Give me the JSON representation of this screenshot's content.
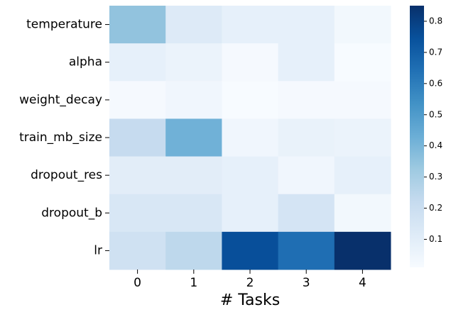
{
  "chart_data": {
    "type": "heatmap",
    "x_label": "# Tasks",
    "x_categories": [
      "0",
      "1",
      "2",
      "3",
      "4"
    ],
    "y_categories": [
      "temperature",
      "alpha",
      "weight_decay",
      "train_mb_size",
      "dropout_res",
      "dropout_b",
      "lr"
    ],
    "values": [
      [
        0.35,
        0.12,
        0.08,
        0.08,
        0.03
      ],
      [
        0.08,
        0.06,
        0.02,
        0.08,
        0.01
      ],
      [
        0.02,
        0.04,
        0.01,
        0.02,
        0.02
      ],
      [
        0.22,
        0.42,
        0.04,
        0.07,
        0.06
      ],
      [
        0.1,
        0.1,
        0.08,
        0.04,
        0.08
      ],
      [
        0.14,
        0.14,
        0.08,
        0.16,
        0.03
      ],
      [
        0.18,
        0.24,
        0.75,
        0.65,
        0.85
      ]
    ],
    "colormap": "Blues",
    "vlim": [
      0.01,
      0.85
    ],
    "colorbar_ticks": [
      0.1,
      0.2,
      0.3,
      0.4,
      0.5,
      0.6,
      0.7,
      0.8
    ]
  }
}
